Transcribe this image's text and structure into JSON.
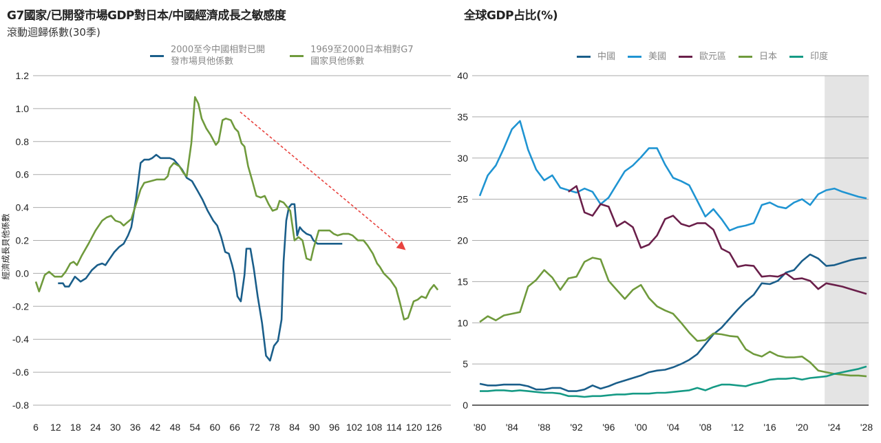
{
  "chart_data": [
    {
      "type": "line",
      "title": "G7國家/已開發市場GDP對日本/中國經濟成長之敏感度",
      "subtitle": "滾動迴歸係數(30季)",
      "ylabel": "經濟成長貝他係數",
      "xlabel": "",
      "xlim": [
        6,
        128
      ],
      "ylim": [
        -0.8,
        1.2
      ],
      "xticks": [
        6,
        12,
        18,
        24,
        30,
        36,
        42,
        48,
        54,
        60,
        66,
        72,
        78,
        84,
        90,
        96,
        102,
        108,
        114,
        120,
        126
      ],
      "yticks": [
        1.2,
        1.0,
        0.8,
        0.6,
        0.4,
        0.2,
        0.0,
        -0.2,
        -0.4,
        -0.6,
        -0.8
      ],
      "ytick_labels": [
        "1.2",
        "1.0",
        "0.8",
        "0.6",
        "0.4",
        "0.2",
        "0.0",
        "-0.2",
        "-0.4",
        "-0.6",
        "-0.8"
      ],
      "grid": "horizontal",
      "legend_position": "top",
      "series": [
        {
          "name": "2000至今中國相對已開發市場貝他係數",
          "name_lines": [
            "2000至今中國相對已開",
            "發市場貝他係數"
          ],
          "color": "#1a5e8a",
          "x": [
            12.7,
            14.2,
            14.8,
            16,
            17.8,
            19.5,
            21.1,
            22.9,
            24.6,
            26,
            27,
            28,
            29.7,
            31.1,
            32.5,
            33.8,
            34.8,
            36.2,
            37.6,
            38.7,
            40.1,
            41.1,
            42.3,
            43.6,
            45.4,
            46.4,
            47.6,
            48.9,
            50.1,
            51.5,
            53.1,
            54.8,
            56.2,
            57.8,
            59.5,
            60.7,
            61.9,
            63.1,
            64.2,
            65.2,
            65.8,
            66.8,
            67.8,
            68.9,
            69.5,
            70.7,
            71.7,
            72.9,
            74.2,
            75.4,
            76.6,
            77.8,
            79,
            80.1,
            80.7,
            81.5,
            82.3,
            83.1,
            84,
            84.8,
            85.6,
            86.4,
            87.6,
            88.9,
            89.7,
            90.9,
            92.1,
            93.8,
            95.4,
            96.6,
            98.4
          ],
          "y": [
            -0.06,
            -0.06,
            -0.08,
            -0.08,
            -0.02,
            -0.05,
            -0.03,
            0.02,
            0.05,
            0.06,
            0.05,
            0.08,
            0.13,
            0.16,
            0.18,
            0.23,
            0.28,
            0.45,
            0.67,
            0.69,
            0.69,
            0.7,
            0.72,
            0.7,
            0.7,
            0.7,
            0.69,
            0.66,
            0.63,
            0.58,
            0.56,
            0.5,
            0.45,
            0.38,
            0.32,
            0.29,
            0.22,
            0.13,
            0.12,
            0.05,
            0.0,
            -0.14,
            -0.17,
            -0.01,
            0.15,
            0.15,
            0.03,
            -0.14,
            -0.3,
            -0.5,
            -0.53,
            -0.44,
            -0.41,
            -0.28,
            0.07,
            0.32,
            0.4,
            0.42,
            0.42,
            0.23,
            0.28,
            0.26,
            0.24,
            0.23,
            0.2,
            0.18,
            0.18,
            0.18,
            0.18,
            0.18,
            0.18
          ]
        },
        {
          "name": "1969至2000日本相對G7國家貝他係數",
          "name_lines": [
            "1969至2000日本相對G7",
            "國家貝他係數"
          ],
          "color": "#6f9a3c",
          "x": [
            6,
            7,
            8.7,
            10,
            11.7,
            13.8,
            15,
            16.4,
            17.4,
            18.4,
            19.9,
            21.9,
            24,
            26,
            27.4,
            28.7,
            30,
            31.5,
            32.5,
            33.6,
            34.8,
            36.2,
            37.6,
            38.7,
            40.7,
            42.5,
            44.8,
            45.8,
            46.4,
            47.6,
            49.3,
            50.5,
            51.5,
            52.9,
            54,
            55,
            56,
            57.4,
            58.7,
            60.3,
            61.1,
            62.3,
            63.3,
            64.8,
            66,
            67,
            68,
            68.9,
            70,
            71.3,
            72.5,
            73.8,
            75,
            76.2,
            77.4,
            78.7,
            79.5,
            80.7,
            81.9,
            82.7,
            84,
            85.2,
            86.4,
            87.6,
            88.9,
            89.7,
            91.3,
            92.9,
            94.6,
            95.8,
            97,
            98.7,
            100.3,
            101.5,
            103.1,
            104.8,
            106,
            107.6,
            108.9,
            109.7,
            110.9,
            112.9,
            114.6,
            115.8,
            117,
            118.2,
            119.9,
            121.1,
            122.3,
            123.6,
            124.8,
            126,
            127.2
          ],
          "y": [
            -0.05,
            -0.11,
            -0.01,
            0.01,
            -0.02,
            -0.02,
            0.01,
            0.06,
            0.07,
            0.05,
            0.11,
            0.18,
            0.26,
            0.32,
            0.34,
            0.35,
            0.32,
            0.31,
            0.29,
            0.31,
            0.33,
            0.42,
            0.51,
            0.55,
            0.56,
            0.57,
            0.57,
            0.59,
            0.64,
            0.67,
            0.65,
            0.61,
            0.59,
            0.79,
            1.07,
            1.03,
            0.94,
            0.88,
            0.84,
            0.78,
            0.8,
            0.93,
            0.94,
            0.93,
            0.88,
            0.86,
            0.79,
            0.77,
            0.65,
            0.56,
            0.47,
            0.46,
            0.47,
            0.42,
            0.38,
            0.39,
            0.44,
            0.43,
            0.4,
            0.38,
            0.2,
            0.22,
            0.2,
            0.09,
            0.08,
            0.15,
            0.26,
            0.26,
            0.26,
            0.24,
            0.23,
            0.24,
            0.24,
            0.23,
            0.2,
            0.2,
            0.17,
            0.12,
            0.06,
            0.04,
            0.0,
            -0.04,
            -0.09,
            -0.18,
            -0.28,
            -0.27,
            -0.17,
            -0.16,
            -0.14,
            -0.15,
            -0.1,
            -0.07,
            -0.1
          ]
        }
      ],
      "annotations": [
        {
          "type": "dashed-arrow",
          "color": "#e8433f",
          "from": [
            67.6,
            0.98
          ],
          "to": [
            117,
            0.15
          ]
        }
      ]
    },
    {
      "type": "line",
      "title": "全球GDP占比(%)",
      "xlabel": "",
      "ylabel": "",
      "xlim": [
        1980,
        2028
      ],
      "ylim": [
        0,
        40
      ],
      "xticks": [
        1980,
        1984,
        1988,
        1992,
        1996,
        2000,
        2004,
        2008,
        2012,
        2016,
        2020,
        2024,
        2028
      ],
      "xtick_labels": [
        "'80",
        "'84",
        "'88",
        "'92",
        "'96",
        "'00",
        "'04",
        "'08",
        "'12",
        "'16",
        "'20",
        "'24",
        "'28"
      ],
      "yticks": [
        0,
        5,
        10,
        15,
        20,
        25,
        30,
        35,
        40
      ],
      "ytick_labels": [
        "0",
        "5",
        "10",
        "15",
        "20",
        "25",
        "30",
        "35",
        "40"
      ],
      "grid": "horizontal",
      "legend_position": "top",
      "shaded_range": [
        2022.8,
        2028.3
      ],
      "shade_color": "#e4e4e4",
      "series": [
        {
          "name": "中國",
          "color": "#1a5e8a",
          "x_start": 1980,
          "values": [
            2.6,
            2.4,
            2.4,
            2.5,
            2.5,
            2.5,
            2.3,
            1.9,
            1.9,
            2.1,
            2.1,
            1.7,
            1.7,
            1.9,
            2.4,
            2.0,
            2.3,
            2.7,
            3.0,
            3.3,
            3.6,
            4.0,
            4.2,
            4.3,
            4.6,
            5.0,
            5.5,
            6.2,
            7.4,
            8.6,
            9.4,
            10.5,
            11.6,
            12.6,
            13.4,
            14.8,
            14.7,
            15.1,
            16.1,
            16.4,
            17.5,
            18.3,
            17.8,
            16.9,
            17.0,
            17.3,
            17.6,
            17.8,
            17.9
          ]
        },
        {
          "name": "美國",
          "color": "#1f94d2",
          "x_start": 1980,
          "values": [
            25.4,
            27.9,
            29.1,
            31.2,
            33.5,
            34.5,
            31.0,
            28.6,
            27.3,
            27.9,
            26.4,
            26.1,
            25.8,
            26.3,
            25.9,
            24.4,
            25.2,
            26.8,
            28.4,
            29.1,
            30.1,
            31.2,
            31.2,
            29.2,
            27.6,
            27.2,
            26.7,
            24.8,
            22.9,
            23.8,
            22.6,
            21.2,
            21.6,
            21.8,
            22.1,
            24.3,
            24.6,
            24.1,
            23.9,
            24.6,
            25.0,
            24.3,
            25.6,
            26.1,
            26.3,
            25.9,
            25.6,
            25.3,
            25.1
          ]
        },
        {
          "name": "歐元區",
          "color": "#6a1f4a",
          "x_start": 1991,
          "values": [
            25.9,
            26.6,
            23.4,
            23.0,
            24.4,
            24.1,
            21.7,
            22.3,
            21.6,
            19.1,
            19.5,
            20.6,
            22.6,
            23.0,
            22.0,
            21.7,
            22.1,
            22.1,
            21.3,
            19.0,
            18.5,
            16.8,
            17.0,
            16.9,
            15.6,
            15.7,
            15.6,
            16.0,
            15.3,
            15.4,
            15.1,
            14.1,
            14.8,
            14.6,
            14.4,
            14.1,
            13.8,
            13.5
          ]
        },
        {
          "name": "日本",
          "color": "#6f9a3c",
          "x_start": 1980,
          "values": [
            10.1,
            10.8,
            10.3,
            10.9,
            11.1,
            11.3,
            14.4,
            15.2,
            16.4,
            15.5,
            14.0,
            15.4,
            15.6,
            17.4,
            17.9,
            17.7,
            15.1,
            14.0,
            12.9,
            14.0,
            14.6,
            13.0,
            12.0,
            11.5,
            11.1,
            10.0,
            8.8,
            7.8,
            7.9,
            8.7,
            8.6,
            8.4,
            8.3,
            6.8,
            6.2,
            5.9,
            6.5,
            6.0,
            5.8,
            5.8,
            5.9,
            5.2,
            4.2,
            4.0,
            3.8,
            3.7,
            3.6,
            3.6,
            3.5
          ]
        },
        {
          "name": "印度",
          "color": "#159a85",
          "x_start": 1980,
          "values": [
            1.7,
            1.7,
            1.8,
            1.8,
            1.7,
            1.8,
            1.7,
            1.6,
            1.5,
            1.5,
            1.4,
            1.1,
            1.1,
            1.0,
            1.1,
            1.1,
            1.2,
            1.3,
            1.3,
            1.4,
            1.4,
            1.4,
            1.5,
            1.5,
            1.6,
            1.7,
            1.8,
            2.1,
            1.8,
            2.2,
            2.5,
            2.5,
            2.4,
            2.3,
            2.6,
            2.8,
            3.1,
            3.2,
            3.2,
            3.3,
            3.1,
            3.3,
            3.4,
            3.5,
            3.8,
            4.0,
            4.2,
            4.4,
            4.7
          ]
        }
      ]
    }
  ]
}
